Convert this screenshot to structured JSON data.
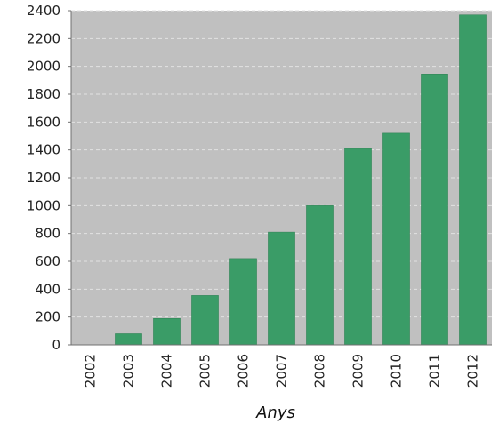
{
  "chart_data": {
    "type": "bar",
    "categories": [
      "2002",
      "2003",
      "2004",
      "2005",
      "2006",
      "2007",
      "2008",
      "2009",
      "2010",
      "2011",
      "2012"
    ],
    "values": [
      0,
      80,
      190,
      355,
      620,
      810,
      1000,
      1410,
      1520,
      1945,
      2370
    ],
    "xlabel": "Anys",
    "ylabel": "",
    "ylim": [
      0,
      2400
    ],
    "yticks": [
      0,
      200,
      400,
      600,
      800,
      1000,
      1200,
      1400,
      1600,
      1800,
      2000,
      2200,
      2400
    ],
    "grid": true,
    "legend": "none",
    "colors": {
      "bar": "#3a9c67",
      "bar_edge": "#2f7f53",
      "plot_background": "#c0c0c0",
      "grid": "#e2e2e2",
      "axis": "#707070"
    }
  }
}
